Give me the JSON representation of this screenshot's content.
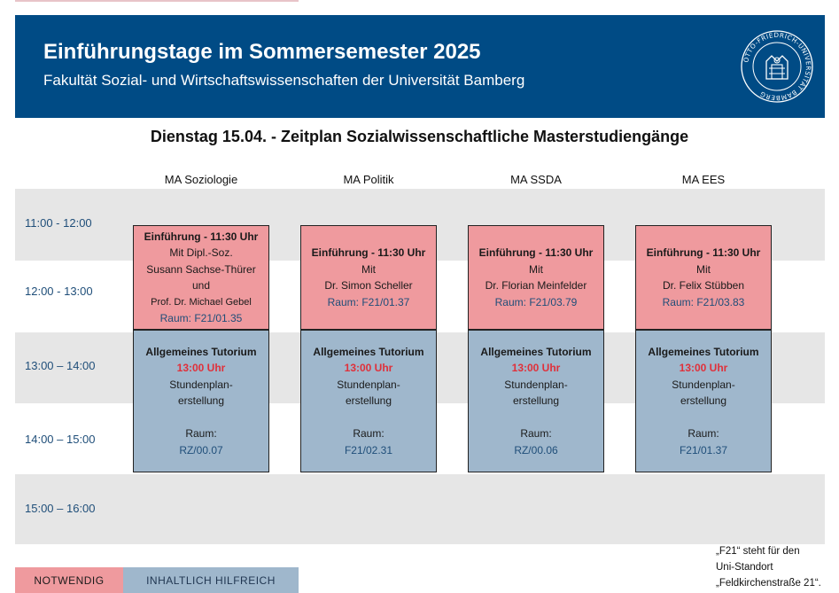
{
  "header": {
    "title": "Einführungstage im Sommersemester 2025",
    "subtitle": "Fakultät Sozial- und Wirtschaftswissenschaften der Universität Bamberg",
    "seal_text": "OTTO-FRIEDRICH-UNIVERSITÄT BAMBERG",
    "colors": {
      "header_bg": "#004b85",
      "required": "#ef9a9e",
      "helpful": "#9fb7cc",
      "time_red": "#e0303a"
    }
  },
  "heading": "Dienstag 15.04. - Zeitplan Sozialwissenschaftliche Masterstudiengänge",
  "columns": [
    "MA  Soziologie",
    "MA Politik",
    "MA SSDA",
    "MA EES"
  ],
  "times": [
    "11:00 - 12:00",
    "12:00 - 13:00",
    "13:00 – 14:00",
    "14:00 – 15:00",
    "15:00 – 16:00"
  ],
  "intro": [
    {
      "title": "Einführung - 11:30 Uhr",
      "lines": [
        "Mit Dipl.-Soz.",
        "Susann Sachse-Thürer",
        "und"
      ],
      "small": "Prof. Dr. Michael Gebel",
      "room": "Raum: F21/01.35"
    },
    {
      "title": "Einführung - 11:30 Uhr",
      "lines": [
        "Mit",
        "Dr. Simon Scheller"
      ],
      "room": "Raum: F21/01.37"
    },
    {
      "title": "Einführung - 11:30 Uhr",
      "lines": [
        "Mit",
        "Dr. Florian Meinfelder"
      ],
      "room": "Raum: F21/03.79"
    },
    {
      "title": "Einführung - 11:30 Uhr",
      "lines": [
        "Mit",
        "Dr. Felix Stübben"
      ],
      "room": "Raum: F21/03.83"
    }
  ],
  "tutorium": [
    {
      "title": "Allgemeines Tutorium",
      "time": "13:00 Uhr",
      "l1": "Stundenplan-",
      "l2": "erstellung",
      "raum": "Raum:",
      "room": "RZ/00.07"
    },
    {
      "title": "Allgemeines Tutorium",
      "time": "13:00 Uhr",
      "l1": "Stundenplan-",
      "l2": "erstellung",
      "raum": "Raum:",
      "room": "F21/02.31"
    },
    {
      "title": "Allgemeines Tutorium",
      "time": "13:00 Uhr",
      "l1": "Stundenplan-",
      "l2": "erstellung",
      "raum": "Raum:",
      "room": "RZ/00.06"
    },
    {
      "title": "Allgemeines Tutorium",
      "time": "13:00 Uhr",
      "l1": "Stundenplan-",
      "l2": "erstellung",
      "raum": "Raum:",
      "room": "F21/01.37"
    }
  ],
  "legend": {
    "required": "NOTWENDIG",
    "helpful": "INHALTLICH HILFREICH"
  },
  "note": [
    "„F21“ steht für den",
    "Uni-Standort",
    "„Feldkirchenstraße 21“."
  ]
}
